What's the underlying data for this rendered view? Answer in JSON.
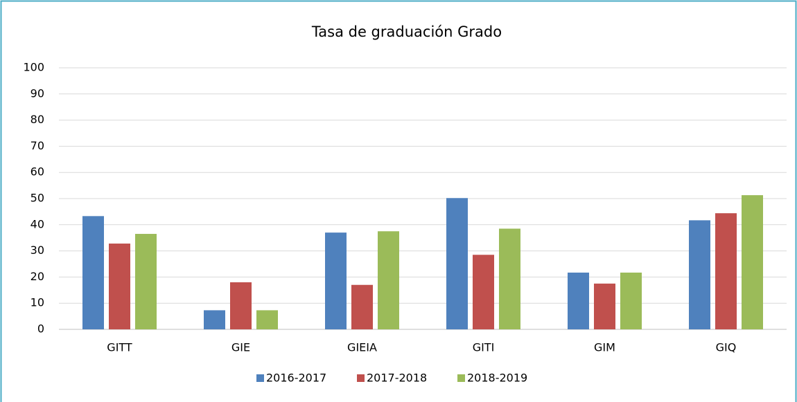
{
  "chart_data": {
    "type": "bar",
    "title": "Tasa de graduación Grado",
    "categories": [
      "GITT",
      "GIE",
      "GIEIA",
      "GITI",
      "GIM",
      "GIQ"
    ],
    "series": [
      {
        "name": "2016-2017",
        "color": "#4f81bd",
        "values": [
          43.3,
          7.3,
          37,
          50.2,
          21.7,
          41.7
        ]
      },
      {
        "name": "2017-2018",
        "color": "#c0504d",
        "values": [
          32.8,
          18,
          17,
          28.5,
          17.5,
          44.4
        ]
      },
      {
        "name": "2018-2019",
        "color": "#9bbb59",
        "values": [
          36.5,
          7.3,
          37.5,
          38.5,
          21.7,
          51.3
        ]
      }
    ],
    "ylim": [
      0,
      100
    ],
    "yticks": [
      0,
      10,
      20,
      30,
      40,
      50,
      60,
      70,
      80,
      90,
      100
    ],
    "grid": true,
    "legend": "bottom"
  }
}
